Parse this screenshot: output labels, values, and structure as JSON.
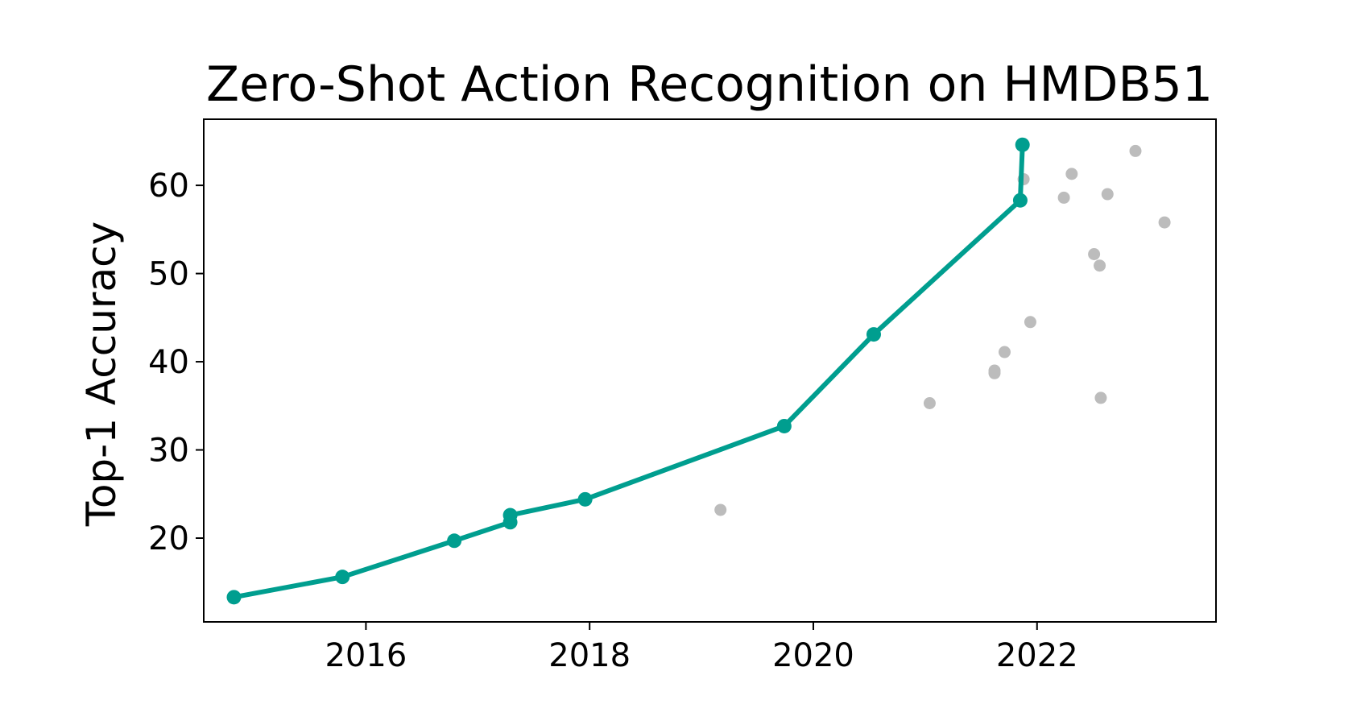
{
  "chart_data": {
    "type": "scatter",
    "title": "Zero-Shot Action Recognition on HMDB51",
    "xlabel": "",
    "ylabel": "Top-1 Accuracy",
    "xlim": [
      2014.55,
      2023.6
    ],
    "ylim": [
      10.5,
      67.5
    ],
    "xticks": [
      2016,
      2018,
      2020,
      2022
    ],
    "yticks": [
      20,
      30,
      40,
      50,
      60
    ],
    "grid": false,
    "colors": {
      "frontier": "#009e8f",
      "other": "#bcbcbc",
      "axes": "#000000"
    },
    "series": [
      {
        "kind": "frontier-line",
        "points": [
          {
            "x": 2014.82,
            "y": 13.3
          },
          {
            "x": 2015.79,
            "y": 15.6
          },
          {
            "x": 2016.79,
            "y": 19.7
          },
          {
            "x": 2017.29,
            "y": 21.8
          },
          {
            "x": 2017.29,
            "y": 22.6
          },
          {
            "x": 2017.96,
            "y": 24.4
          },
          {
            "x": 2019.74,
            "y": 32.7
          },
          {
            "x": 2020.54,
            "y": 43.1
          },
          {
            "x": 2021.85,
            "y": 58.3
          },
          {
            "x": 2021.87,
            "y": 64.6
          }
        ]
      },
      {
        "kind": "other-points",
        "points": [
          {
            "x": 2019.17,
            "y": 23.2
          },
          {
            "x": 2021.04,
            "y": 35.3
          },
          {
            "x": 2021.62,
            "y": 38.7
          },
          {
            "x": 2021.62,
            "y": 39.0
          },
          {
            "x": 2021.71,
            "y": 41.1
          },
          {
            "x": 2021.94,
            "y": 44.5
          },
          {
            "x": 2021.88,
            "y": 60.7
          },
          {
            "x": 2022.24,
            "y": 58.6
          },
          {
            "x": 2022.31,
            "y": 61.3
          },
          {
            "x": 2022.51,
            "y": 52.2
          },
          {
            "x": 2022.56,
            "y": 50.9
          },
          {
            "x": 2022.57,
            "y": 35.9
          },
          {
            "x": 2022.63,
            "y": 59.0
          },
          {
            "x": 2022.88,
            "y": 63.9
          },
          {
            "x": 2023.14,
            "y": 55.8
          }
        ]
      }
    ]
  }
}
